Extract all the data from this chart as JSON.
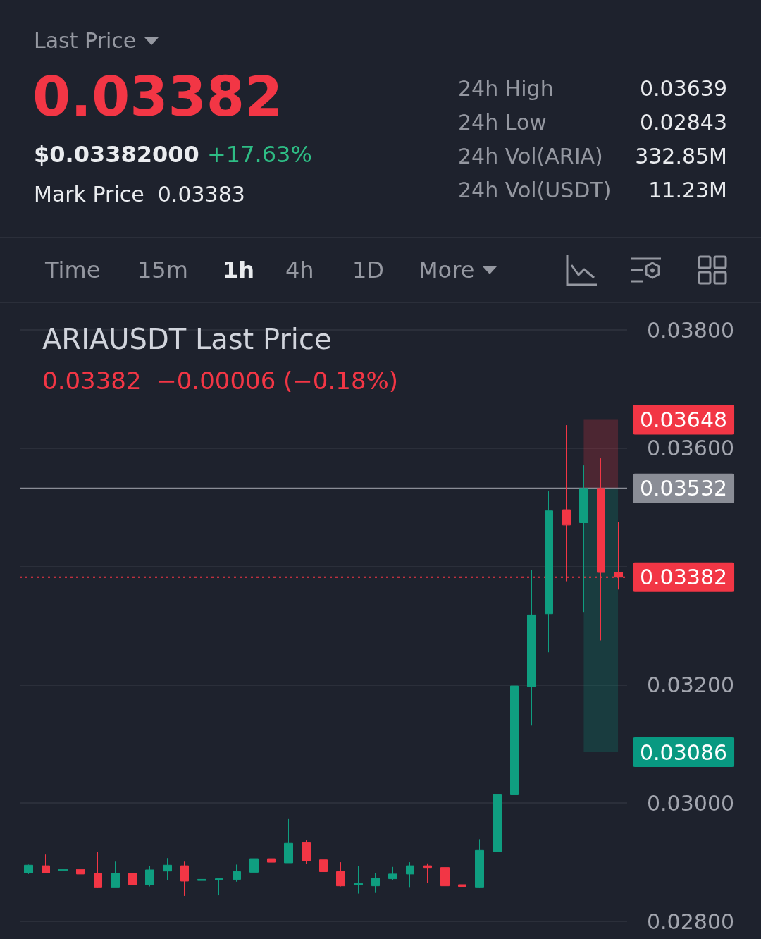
{
  "chart_data": {
    "type": "candlestick",
    "title": "ARIAUSDT Last Price",
    "subtitle": "0.03382  −0.00006 (−0.18%)",
    "annotations": [
      "Last Price",
      "0.03382",
      "$0.03382000",
      "+17.63%",
      "Mark Price",
      "0.03383",
      "24h High",
      "0.03639",
      "24h Low",
      "0.02843",
      "24h Vol(ARIA)",
      "332.85M",
      "24h Vol(USDT)",
      "11.23M",
      "Time",
      "15m",
      "1h",
      "4h",
      "1D",
      "More"
    ],
    "categories": [
      null,
      null,
      null,
      null,
      null,
      null,
      null,
      null,
      null,
      null,
      null,
      null,
      null,
      null,
      null,
      null,
      null,
      null,
      null,
      null,
      null,
      null,
      null,
      null,
      null,
      null,
      null,
      null,
      null,
      null,
      null,
      null,
      null,
      null,
      null
    ],
    "ohlc": [
      [
        0.02882,
        0.02896,
        0.0288,
        0.02895
      ],
      [
        0.02894,
        0.02913,
        0.02882,
        0.02882
      ],
      [
        0.02886,
        0.029,
        0.02875,
        0.02888
      ],
      [
        0.02888,
        0.02915,
        0.02855,
        0.0288
      ],
      [
        0.02881,
        0.02918,
        0.02857,
        0.02858
      ],
      [
        0.02858,
        0.02901,
        0.02858,
        0.02881
      ],
      [
        0.02881,
        0.02896,
        0.02862,
        0.02862
      ],
      [
        0.02862,
        0.02894,
        0.02859,
        0.02887
      ],
      [
        0.02885,
        0.02907,
        0.0287,
        0.02895
      ],
      [
        0.02894,
        0.02901,
        0.02843,
        0.02868
      ],
      [
        0.02869,
        0.02883,
        0.0286,
        0.02871
      ],
      [
        0.0287,
        0.02872,
        0.02844,
        0.02872
      ],
      [
        0.02871,
        0.02896,
        0.02867,
        0.02884
      ],
      [
        0.02883,
        0.0291,
        0.02872,
        0.02906
      ],
      [
        0.02906,
        0.02936,
        0.02898,
        0.029
      ],
      [
        0.02899,
        0.02973,
        0.02899,
        0.02932
      ],
      [
        0.02933,
        0.02937,
        0.02897,
        0.02902
      ],
      [
        0.02904,
        0.02913,
        0.02844,
        0.02884
      ],
      [
        0.02884,
        0.029,
        0.02859,
        0.0286
      ],
      [
        0.02862,
        0.02894,
        0.02847,
        0.02864
      ],
      [
        0.0286,
        0.02882,
        0.02848,
        0.02873
      ],
      [
        0.02872,
        0.02892,
        0.0287,
        0.0288
      ],
      [
        0.0288,
        0.029,
        0.02858,
        0.02894
      ],
      [
        0.02894,
        0.02898,
        0.02865,
        0.02891
      ],
      [
        0.02891,
        0.029,
        0.02854,
        0.0286
      ],
      [
        0.02862,
        0.02868,
        0.02853,
        0.02859
      ],
      [
        0.02858,
        0.02939,
        0.02857,
        0.0292
      ],
      [
        0.02918,
        0.03047,
        0.029,
        0.03014
      ],
      [
        0.03014,
        0.03214,
        0.02983,
        0.03198
      ],
      [
        0.03197,
        0.03394,
        0.03131,
        0.03318
      ],
      [
        0.0332,
        0.03527,
        0.03255,
        0.03494
      ],
      [
        0.03496,
        0.03639,
        0.03375,
        0.0347
      ],
      [
        0.03474,
        0.03571,
        0.03323,
        0.03532
      ],
      [
        0.03532,
        0.03583,
        0.03275,
        0.0339
      ],
      [
        0.0339,
        0.03475,
        0.03361,
        0.03382
      ]
    ],
    "ylim": [
      0.028,
      0.038
    ],
    "yticks": [
      {
        "value": 0.028,
        "label": "0.02800"
      },
      {
        "value": 0.03,
        "label": "0.03000"
      },
      {
        "value": 0.032,
        "label": "0.03200"
      },
      {
        "value": 0.034,
        "label": null
      },
      {
        "value": 0.036,
        "label": "0.03600"
      },
      {
        "value": 0.038,
        "label": "0.03800"
      }
    ],
    "grid": "y",
    "ref_lines": [
      {
        "axis": "y",
        "value": 0.03382,
        "label": "0.03382",
        "color": "#f23645",
        "line_style": "dotted"
      },
      {
        "axis": "y",
        "value": 0.03532,
        "label": "0.03532",
        "color": "#8a8d96",
        "line_style": "solid"
      }
    ],
    "bands": [
      {
        "axis": "y",
        "from": 0.03532,
        "to": 0.03648,
        "label": "0.03648",
        "color": "#f23645"
      },
      {
        "axis": "y",
        "from": 0.03086,
        "to": 0.03532,
        "label": "0.03086",
        "color": "#089981"
      }
    ]
  }
}
